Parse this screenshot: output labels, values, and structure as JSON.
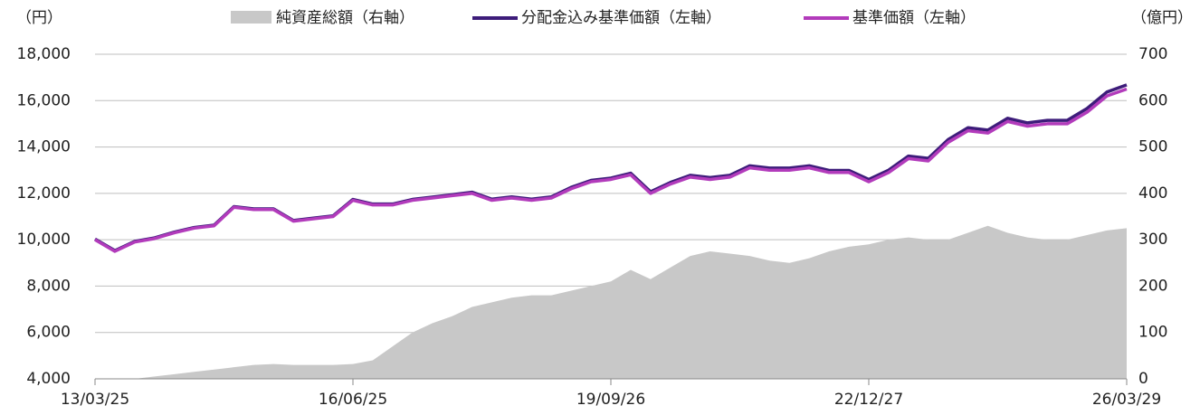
{
  "chart_data": {
    "type": "line",
    "y_unit_label": "（円）",
    "y2_unit_label": "（億円）",
    "categories": [
      "13/03/25",
      null,
      null,
      null,
      null,
      null,
      null,
      null,
      null,
      null,
      null,
      null,
      null,
      "16/06/25",
      null,
      null,
      null,
      null,
      null,
      null,
      null,
      null,
      null,
      null,
      null,
      null,
      "19/09/26",
      null,
      null,
      null,
      null,
      null,
      null,
      null,
      null,
      null,
      null,
      null,
      null,
      "22/12/27",
      null,
      null,
      null,
      null,
      null,
      null,
      null,
      null,
      null,
      null,
      null,
      null,
      "26/03/29"
    ],
    "series": [
      {
        "name": "純資産総額（右軸）",
        "type": "area",
        "axis": "y2",
        "color": "#c8c8c8",
        "values": [
          0,
          0,
          0,
          5,
          10,
          15,
          20,
          25,
          30,
          32,
          30,
          30,
          30,
          32,
          40,
          70,
          100,
          120,
          135,
          155,
          165,
          175,
          180,
          180,
          190,
          200,
          210,
          235,
          215,
          240,
          265,
          275,
          270,
          265,
          255,
          250,
          260,
          275,
          285,
          290,
          300,
          305,
          300,
          300,
          315,
          330,
          315,
          305,
          300,
          300,
          310,
          320,
          325
        ]
      },
      {
        "name": "分配金込み基準価額（左軸）",
        "type": "line",
        "color": "#3d1c7a",
        "values": [
          10030,
          9530,
          9930,
          10080,
          10330,
          10530,
          10630,
          11430,
          11330,
          11330,
          10830,
          10930,
          11030,
          11740,
          11540,
          11540,
          11740,
          11840,
          11940,
          12050,
          11750,
          11850,
          11750,
          11850,
          12260,
          12560,
          12660,
          12870,
          12070,
          12470,
          12780,
          12680,
          12780,
          13190,
          13090,
          13090,
          13190,
          12990,
          12990,
          12600,
          13000,
          13610,
          13510,
          14320,
          14830,
          14730,
          15240,
          15040,
          15150,
          15150,
          15660,
          16370,
          16680
        ]
      },
      {
        "name": "基準価額（左軸）",
        "type": "line",
        "color": "#b23bbb",
        "values": [
          10000,
          9500,
          9900,
          10050,
          10300,
          10500,
          10600,
          11400,
          11300,
          11300,
          10800,
          10900,
          11000,
          11700,
          11500,
          11500,
          11700,
          11800,
          11900,
          12000,
          11700,
          11800,
          11700,
          11800,
          12200,
          12500,
          12600,
          12800,
          12000,
          12400,
          12700,
          12600,
          12700,
          13100,
          13000,
          13000,
          13100,
          12900,
          12900,
          12500,
          12900,
          13500,
          13400,
          14200,
          14700,
          14600,
          15100,
          14900,
          15000,
          15000,
          15500,
          16200,
          16500
        ]
      }
    ],
    "ylim": [
      4000,
      18000
    ],
    "yticks": [
      {
        "value": 4000,
        "label": "4,000"
      },
      {
        "value": 6000,
        "label": "6,000"
      },
      {
        "value": 8000,
        "label": "8,000"
      },
      {
        "value": 10000,
        "label": "10,000"
      },
      {
        "value": 12000,
        "label": "12,000"
      },
      {
        "value": 14000,
        "label": "14,000"
      },
      {
        "value": 16000,
        "label": "16,000"
      },
      {
        "value": 18000,
        "label": "18,000"
      }
    ],
    "y2lim": [
      0,
      700
    ],
    "y2ticks": [
      0,
      100,
      200,
      300,
      400,
      500,
      600,
      700
    ],
    "grid": true
  }
}
